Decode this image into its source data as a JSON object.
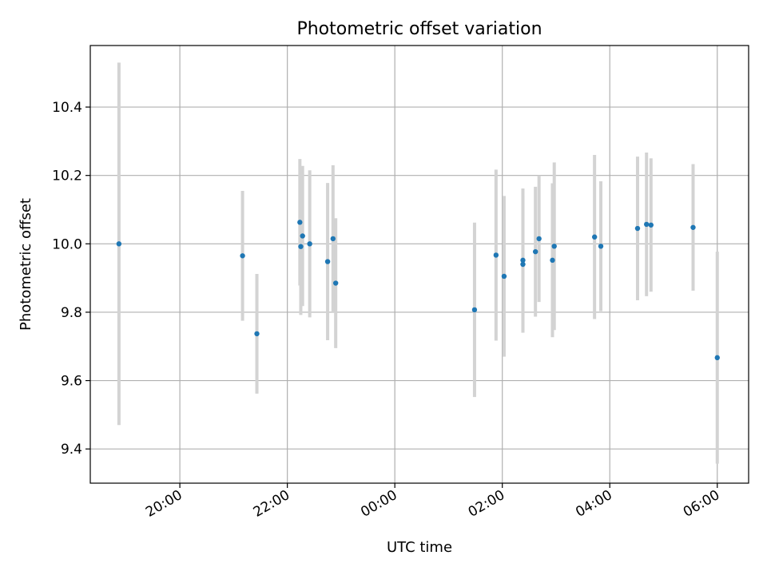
{
  "chart_data": {
    "type": "scatter",
    "title": "Photometric offset variation",
    "xlabel": "UTC time",
    "ylabel": "Photometric offset",
    "x_unit": "UTC time",
    "xlim": [
      "18:20",
      "06:35"
    ],
    "ylim": [
      9.3,
      10.58
    ],
    "xticks": [
      "20:00",
      "22:00",
      "00:00",
      "02:00",
      "04:00",
      "06:00"
    ],
    "yticks": [
      9.4,
      9.6,
      9.8,
      10.0,
      10.2,
      10.4
    ],
    "grid": true,
    "legend": "none",
    "colors": {
      "points": "#1f77b4",
      "errorbars": "#d3d3d3",
      "grid": "#b0b0b0"
    },
    "points": [
      {
        "time": "18:52",
        "y": 10.0,
        "yerr": 0.53
      },
      {
        "time": "21:10",
        "y": 9.965,
        "yerr": 0.19
      },
      {
        "time": "21:26",
        "y": 9.737,
        "yerr": 0.175
      },
      {
        "time": "22:14",
        "y": 10.063,
        "yerr": 0.185
      },
      {
        "time": "22:15",
        "y": 9.992,
        "yerr": 0.2
      },
      {
        "time": "22:17",
        "y": 10.023,
        "yerr": 0.205
      },
      {
        "time": "22:25",
        "y": 10.0,
        "yerr": 0.215
      },
      {
        "time": "22:45",
        "y": 9.948,
        "yerr": 0.23
      },
      {
        "time": "22:51",
        "y": 10.015,
        "yerr": 0.215
      },
      {
        "time": "22:54",
        "y": 9.885,
        "yerr": 0.19
      },
      {
        "time": "01:29",
        "y": 9.807,
        "yerr": 0.255
      },
      {
        "time": "01:53",
        "y": 9.967,
        "yerr": 0.25
      },
      {
        "time": "02:02",
        "y": 9.905,
        "yerr": 0.235
      },
      {
        "time": "02:23",
        "y": 9.952,
        "yerr": 0.21
      },
      {
        "time": "02:23",
        "y": 9.94,
        "yerr": 0.2
      },
      {
        "time": "02:37",
        "y": 9.977,
        "yerr": 0.19
      },
      {
        "time": "02:41",
        "y": 10.015,
        "yerr": 0.185
      },
      {
        "time": "02:56",
        "y": 9.952,
        "yerr": 0.225
      },
      {
        "time": "02:58",
        "y": 9.993,
        "yerr": 0.245
      },
      {
        "time": "03:43",
        "y": 10.02,
        "yerr": 0.24
      },
      {
        "time": "03:50",
        "y": 9.993,
        "yerr": 0.19
      },
      {
        "time": "04:31",
        "y": 10.045,
        "yerr": 0.21
      },
      {
        "time": "04:41",
        "y": 10.057,
        "yerr": 0.21
      },
      {
        "time": "04:46",
        "y": 10.055,
        "yerr": 0.195
      },
      {
        "time": "05:33",
        "y": 10.048,
        "yerr": 0.185
      },
      {
        "time": "06:00",
        "y": 9.667,
        "yerr": 0.31
      }
    ]
  }
}
